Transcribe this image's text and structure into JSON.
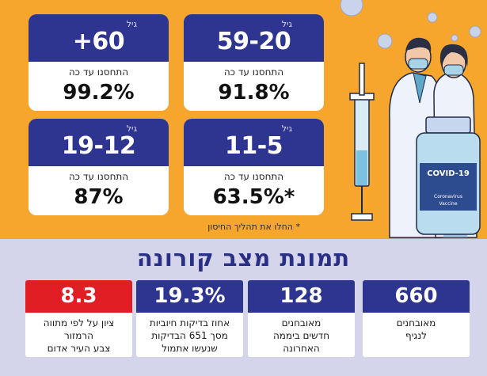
{
  "age_cards": [
    {
      "unit": "גיל",
      "range": "59-20",
      "label": "התחסנו עד כה",
      "value": "91.8%"
    },
    {
      "unit": "גיל",
      "range": "+60",
      "label": "התחסנו עד כה",
      "value": "99.2%"
    },
    {
      "unit": "גיל",
      "range": "11-5",
      "label": "התחסנו עד כה",
      "value": "63.5%*"
    },
    {
      "unit": "גיל",
      "range": "19-12",
      "label": "התחסנו עד כה",
      "value": "87%"
    }
  ],
  "footnote": "* החלו את תהליך החיסון",
  "headline": "תמונת מצב קורונה",
  "stats": [
    {
      "value": "660",
      "label_lines": [
        "מאובחנים",
        "לנגיף"
      ]
    },
    {
      "value": "128",
      "label_lines": [
        "מאובחנים",
        "חדשים ביממה",
        "האחרונה"
      ]
    },
    {
      "value": "19.3%",
      "label_lines": [
        "אחוז בדיקות חיוביות",
        "מסך 651 הבדיקות",
        "שנעשו אתמול"
      ]
    },
    {
      "value": "8.3",
      "label_lines": [
        "ציון על לפי מתווה",
        "הרמזור",
        "צבע העיר אדום"
      ]
    }
  ],
  "illustration": {
    "vial_label": "COVID-19",
    "vial_sub1": "Coronavirus",
    "vial_sub2": "Vaccine"
  },
  "colors": {
    "top_bg": "#f6a52d",
    "bottom_bg": "#d4d4ea",
    "card_head": "#2d3590",
    "alert_red": "#e01e24"
  }
}
